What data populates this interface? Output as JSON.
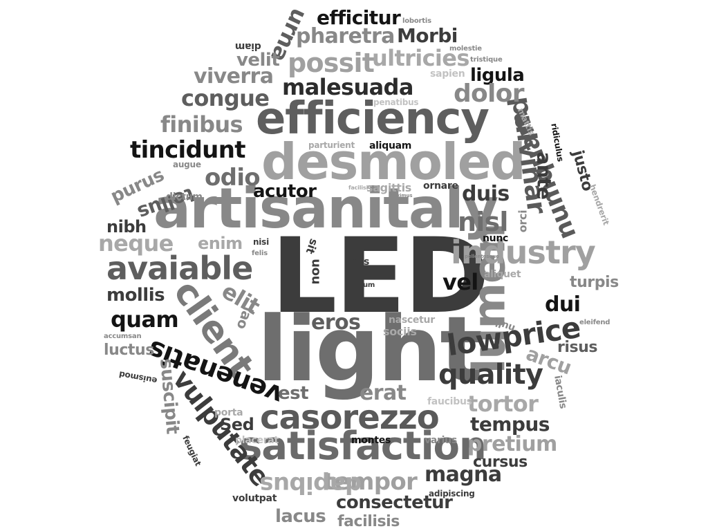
{
  "colors": {
    "background": "#ffffff",
    "black": "#141414",
    "dark": "#3c3c3c",
    "mid": "#5e5e5e",
    "gray": "#888888",
    "light": "#a8a8a8",
    "pale": "#c2c2c2"
  },
  "words": {
    "led": "LED",
    "light": "light",
    "artisanitaly": "artisanitaly",
    "desmoled": "desmoled",
    "efficiency": "efficiency",
    "satisfaction": "satisfaction",
    "casorezzo": "casorezzo",
    "lumen": "lumen",
    "client": "client",
    "avaiable": "avaiable",
    "industry": "industry",
    "lowprice": "lowprice",
    "quality": "quality",
    "vulputate": "vulputate",
    "venenatis": "venenatis",
    "pulvinar": "pulvinar",
    "tincidunt": "tincidunt",
    "malesuada": "malesuada",
    "congue": "congue",
    "finibus": "finibus",
    "viverra": "viverra",
    "pharetra": "pharetra",
    "possit": "possit",
    "ultricies": "ultricies",
    "efficitur": "efficitur",
    "morbi": "Morbi",
    "ligula": "ligula",
    "dolor": "dolor",
    "urna": "urna",
    "velit": "velit",
    "odio": "odio",
    "acutor": "acutor",
    "duis": "duis",
    "nisl": "nisl",
    "neque": "neque",
    "mollis": "mollis",
    "quam": "quam",
    "elit": "elit",
    "eros": "eros",
    "vel": "vel",
    "dui": "dui",
    "arcu": "arcu",
    "tortor": "tortor",
    "tempus": "tempus",
    "erat": "erat",
    "est": "est",
    "sed": "Sed",
    "tempor": "tempor",
    "magna": "magna",
    "pretium": "pretium",
    "cursus": "cursus",
    "dapibus": "dapibus",
    "consectetur": "consectetur",
    "lacus": "lacus",
    "facilisis": "facilisis",
    "purus": "purus",
    "tellus": "tellus",
    "nibh": "nibh",
    "enim": "enim",
    "ante": "ante",
    "numquam": "numquam",
    "justo": "justo",
    "turpis": "turpis",
    "risus": "risus",
    "luctus": "luctus",
    "suscipit": "suscipit",
    "laoreet": "lao",
    "nunc": "nunc",
    "orci": "orci",
    "aliquam": "aliquam",
    "sagittis": "sagittis",
    "ornare": "ornare",
    "dictum": "dictum",
    "augue": "augue",
    "parturient": "parturient",
    "penatibus": "penatibus",
    "sapien": "sapien",
    "tristique": "tristique",
    "molestie": "molestie",
    "lobortis": "lobortis",
    "diam": "diam",
    "mattis": "mattis",
    "ridiculus": "ridiculus",
    "hendrerit": "hendrerit",
    "aliquet": "aliquet",
    "nulla": "nulla",
    "eleifend": "eleifend",
    "iaculis": "iaculis",
    "nascetur": "nascetur",
    "sociis": "sociis",
    "faucibus": "faucibus",
    "varius": "varius",
    "montes": "montes",
    "placerat": "placerat",
    "porta": "porta",
    "feugiat": "feugiat",
    "volutpat": "volutpat",
    "adipiscing": "adipiscing",
    "euismod": "euismod",
    "accumsan": "accumsan",
    "nisi": "nisi",
    "felis": "felis",
    "mus": "mus",
    "rutrum": "rutrum",
    "non": "non",
    "sit": "sit",
    "facilisi": "facilisi",
    "maximus": "maximus",
    "pellentesque": "pellentesque"
  }
}
